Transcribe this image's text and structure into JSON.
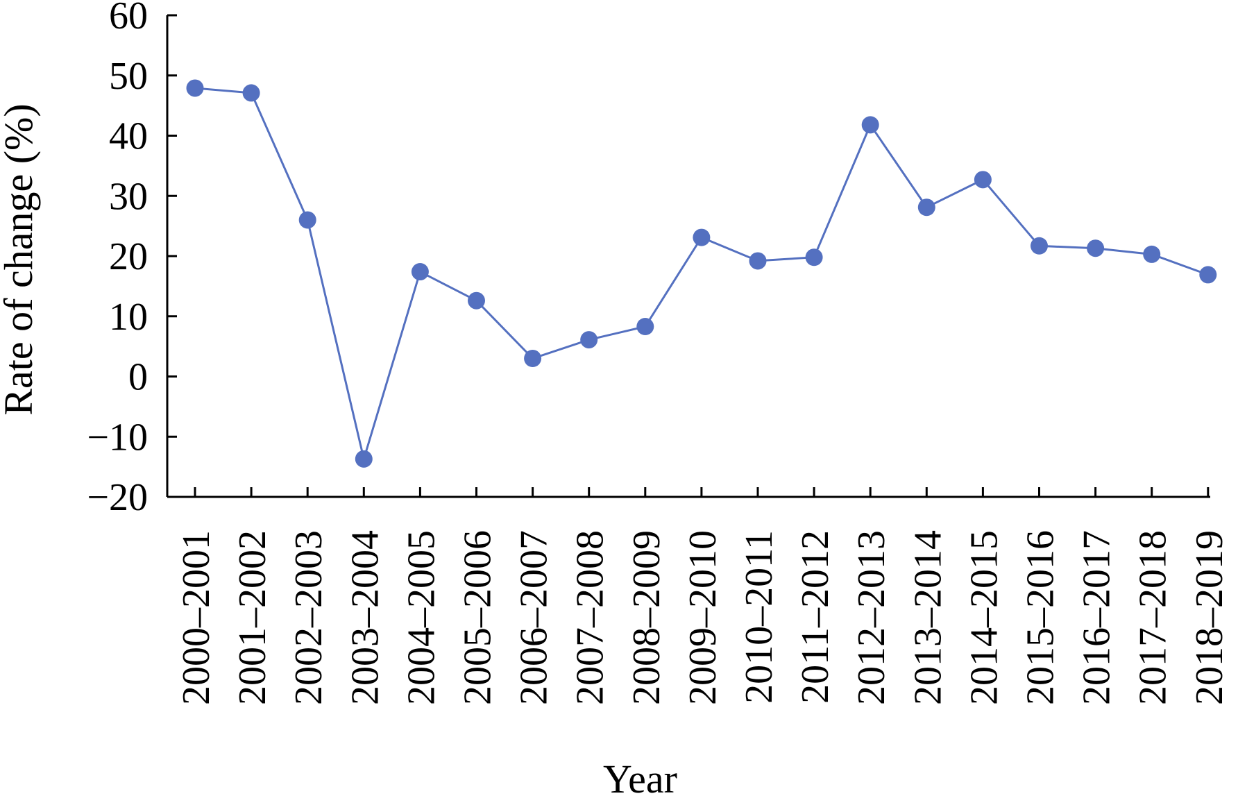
{
  "chart_data": {
    "type": "line",
    "title": "",
    "xlabel": "Year",
    "ylabel": "Rate of change (%)",
    "ylim": [
      -20,
      60
    ],
    "yticks": [
      -20,
      -10,
      0,
      10,
      20,
      30,
      40,
      50,
      60
    ],
    "ytick_labels": [
      "−20",
      "−10",
      "0",
      "10",
      "20",
      "30",
      "40",
      "50",
      "60"
    ],
    "grid": false,
    "legend": "none",
    "categories": [
      "2000–2001",
      "2001–2002",
      "2002–2003",
      "2003–2004",
      "2004–2005",
      "2005–2006",
      "2006–2007",
      "2007–2008",
      "2008–2009",
      "2009–2010",
      "2010–2011",
      "2011–2012",
      "2012–2013",
      "2013–2014",
      "2014–2015",
      "2015–2016",
      "2016–2017",
      "2017–2018",
      "2018–2019"
    ],
    "series": [
      {
        "color": "#5470c0",
        "values": [
          47.9,
          47.1,
          26.0,
          -13.7,
          17.4,
          12.6,
          3.0,
          6.1,
          8.3,
          23.1,
          19.2,
          19.8,
          41.8,
          28.1,
          32.7,
          21.7,
          21.3,
          20.3,
          16.9
        ]
      }
    ]
  }
}
